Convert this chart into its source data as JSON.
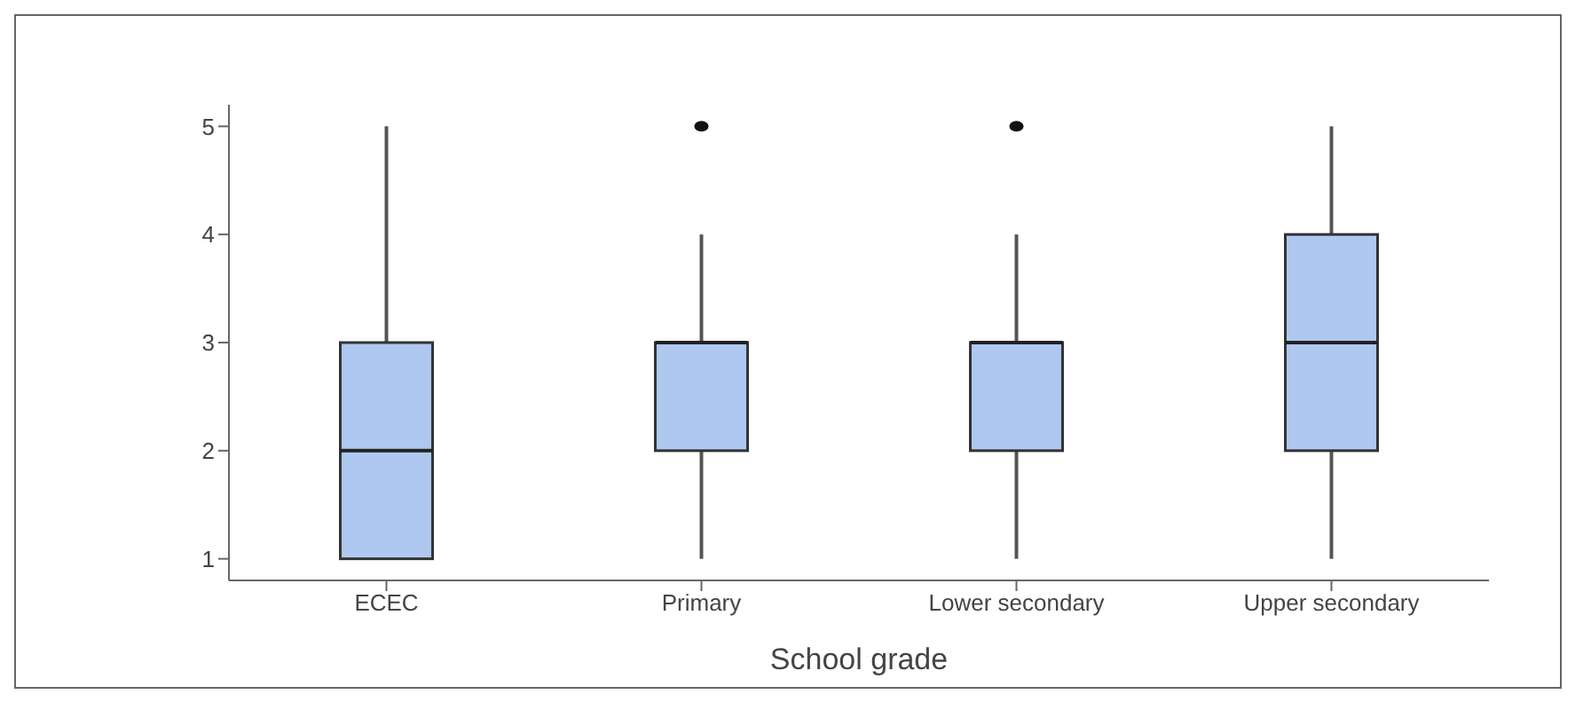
{
  "chart_data": {
    "type": "box",
    "xlabel": "School grade",
    "categories": [
      "ECEC",
      "Primary",
      "Lower secondary",
      "Upper secondary"
    ],
    "boxes": [
      {
        "low": 1,
        "q1": 1,
        "median": 2,
        "q3": 3,
        "high": 5
      },
      {
        "low": 1,
        "q1": 2,
        "median": 3,
        "q3": 3,
        "high": 4,
        "outliers": [
          5
        ]
      },
      {
        "low": 1,
        "q1": 2,
        "median": 3,
        "q3": 3,
        "high": 4,
        "outliers": [
          5
        ]
      },
      {
        "low": 1,
        "q1": 2,
        "median": 3,
        "q3": 4,
        "high": 5
      }
    ],
    "color": "#aec8f0",
    "ylim": [
      0.8,
      5.2
    ],
    "yticks": [
      1,
      2,
      3,
      4,
      5
    ],
    "grid": false,
    "legend": false
  }
}
